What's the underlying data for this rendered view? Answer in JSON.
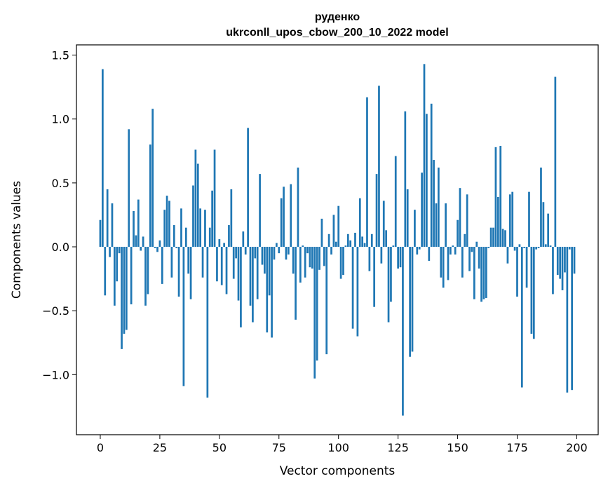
{
  "chart_data": {
    "type": "bar",
    "title": "руденко",
    "subtitle": "ukrconll_upos_cbow_200_10_2022 model",
    "xlabel": "Vector components",
    "ylabel": "Components values",
    "xlim": [
      -10,
      209
    ],
    "ylim": [
      -1.47,
      1.58
    ],
    "xticks": [
      0,
      25,
      50,
      75,
      100,
      125,
      150,
      175,
      200
    ],
    "yticks": [
      -1.0,
      -0.5,
      0.0,
      0.5,
      1.0,
      1.5
    ],
    "ytick_labels": [
      "−1.0",
      "−0.5",
      "0.0",
      "0.5",
      "1.0",
      "1.5"
    ],
    "bar_color": "#1f77b4",
    "grid": false,
    "legend": "none",
    "values": [
      0.21,
      1.39,
      -0.38,
      0.45,
      -0.08,
      0.34,
      -0.46,
      -0.27,
      -0.05,
      -0.8,
      -0.68,
      -0.65,
      0.92,
      -0.45,
      0.28,
      0.09,
      0.37,
      -0.03,
      0.08,
      -0.46,
      -0.37,
      0.8,
      1.08,
      -0.01,
      -0.04,
      0.05,
      -0.29,
      0.29,
      0.4,
      0.36,
      -0.24,
      0.17,
      -0.01,
      -0.39,
      0.3,
      -1.09,
      0.15,
      -0.21,
      -0.41,
      0.48,
      0.76,
      0.65,
      0.3,
      -0.24,
      0.29,
      -1.18,
      0.15,
      0.44,
      0.76,
      -0.27,
      0.06,
      -0.3,
      0.03,
      -0.37,
      0.17,
      0.45,
      -0.25,
      -0.09,
      -0.42,
      -0.63,
      0.12,
      -0.06,
      0.93,
      -0.46,
      -0.59,
      -0.09,
      -0.41,
      0.57,
      -0.14,
      -0.21,
      -0.67,
      -0.38,
      -0.71,
      -0.1,
      0.03,
      -0.05,
      0.38,
      0.47,
      -0.1,
      -0.06,
      0.49,
      -0.21,
      -0.57,
      0.62,
      -0.28,
      0.01,
      -0.24,
      -0.05,
      -0.16,
      -0.17,
      -1.03,
      -0.89,
      -0.18,
      0.22,
      -0.15,
      -0.84,
      0.1,
      -0.06,
      0.25,
      0.04,
      0.32,
      -0.25,
      -0.22,
      0.01,
      0.1,
      0.05,
      -0.64,
      0.11,
      -0.7,
      0.38,
      0.08,
      0.03,
      1.17,
      -0.19,
      0.1,
      -0.47,
      0.57,
      1.26,
      -0.13,
      0.36,
      0.13,
      -0.59,
      -0.43,
      0.01,
      0.71,
      -0.17,
      -0.16,
      -1.32,
      1.06,
      0.45,
      -0.86,
      -0.82,
      0.29,
      -0.06,
      -0.02,
      0.58,
      1.43,
      1.04,
      -0.11,
      1.12,
      0.68,
      0.34,
      0.62,
      -0.24,
      -0.32,
      0.34,
      -0.26,
      -0.06,
      0.01,
      -0.06,
      0.21,
      0.46,
      -0.24,
      0.1,
      0.41,
      -0.19,
      -0.04,
      -0.41,
      0.04,
      -0.17,
      -0.43,
      -0.41,
      -0.4,
      -0.01,
      0.15,
      0.15,
      0.78,
      0.39,
      0.79,
      0.14,
      0.13,
      -0.13,
      0.41,
      0.43,
      -0.03,
      -0.39,
      0.02,
      -1.1,
      -0.01,
      -0.32,
      0.43,
      -0.68,
      -0.72,
      -0.02,
      -0.01,
      0.62,
      0.35,
      0.02,
      0.26,
      0.01,
      -0.37,
      1.33,
      -0.22,
      -0.25,
      -0.34,
      -0.2,
      -1.14,
      -0.02,
      -1.12,
      -0.21
    ]
  }
}
